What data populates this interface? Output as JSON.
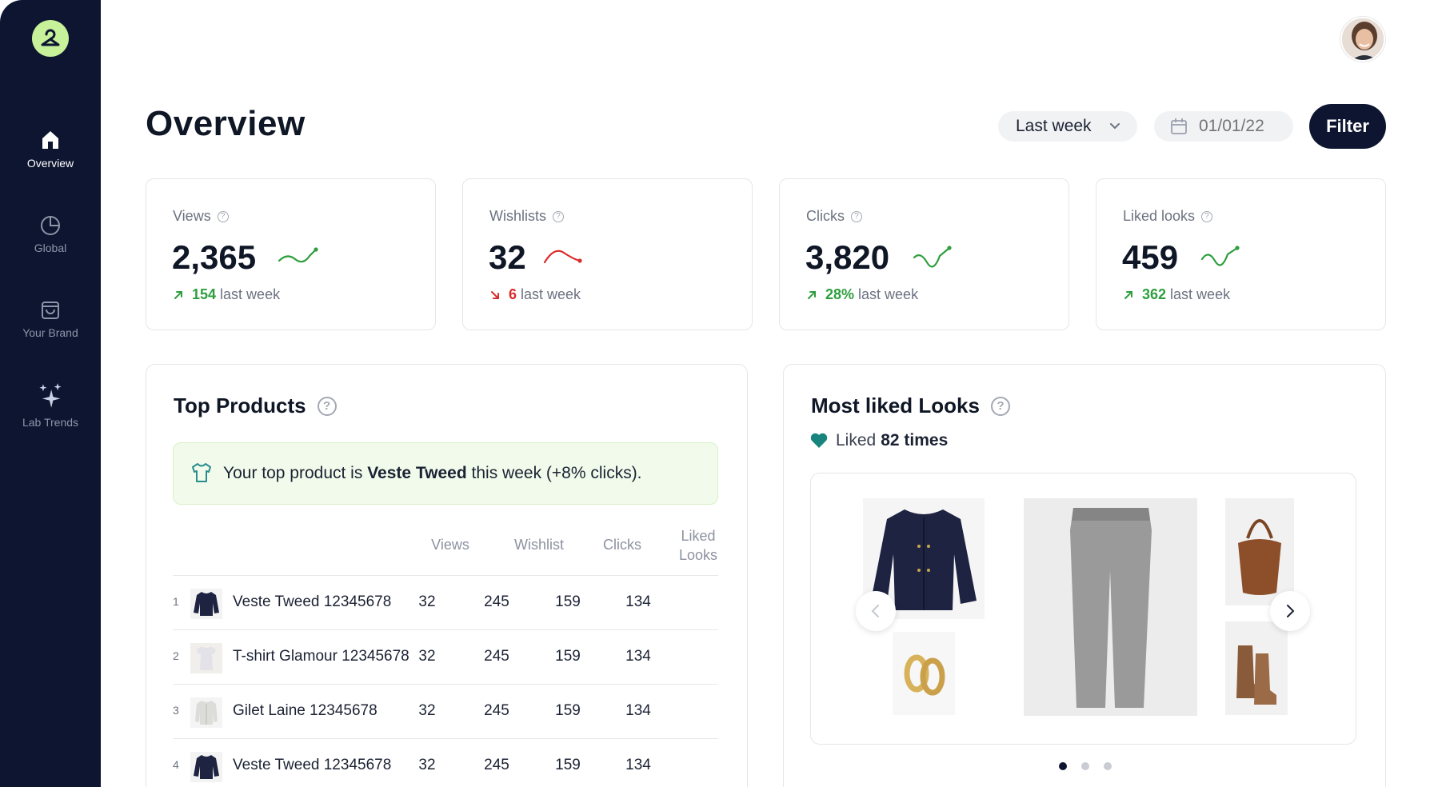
{
  "sidebar": {
    "items": [
      {
        "label": "Overview",
        "icon": "home-icon",
        "active": true
      },
      {
        "label": "Global",
        "icon": "pie-chart-icon",
        "active": false
      },
      {
        "label": "Your Brand",
        "icon": "shopping-bag-icon",
        "active": false
      },
      {
        "label": "Lab Trends",
        "icon": "sparkles-icon",
        "active": false
      }
    ]
  },
  "header": {
    "title": "Overview",
    "period": "Last week",
    "date_placeholder": "01/01/22",
    "filter_label": "Filter"
  },
  "stats": [
    {
      "label": "Views",
      "value": "2,365",
      "delta": "154",
      "delta_suffix": "last week",
      "trend": "up"
    },
    {
      "label": "Wishlists",
      "value": "32",
      "delta": "6",
      "delta_suffix": "last week",
      "trend": "down"
    },
    {
      "label": "Clicks",
      "value": "3,820",
      "delta": "28%",
      "delta_suffix": "last week",
      "trend": "up"
    },
    {
      "label": "Liked looks",
      "value": "459",
      "delta": "362",
      "delta_suffix": "last week",
      "trend": "up"
    }
  ],
  "top_products": {
    "title": "Top Products",
    "insight_prefix": "Your top product is",
    "insight_product": "Veste Tweed",
    "insight_suffix": "this week (+8% clicks).",
    "columns": [
      "Views",
      "Wishlist",
      "Clicks",
      "Liked Looks"
    ],
    "rows": [
      {
        "rank": "1",
        "name": "Veste Tweed 12345678",
        "views": "32",
        "wishlist": "245",
        "clicks": "159",
        "liked": "134"
      },
      {
        "rank": "2",
        "name": "T-shirt Glamour 12345678",
        "views": "32",
        "wishlist": "245",
        "clicks": "159",
        "liked": "134"
      },
      {
        "rank": "3",
        "name": "Gilet Laine 12345678",
        "views": "32",
        "wishlist": "245",
        "clicks": "159",
        "liked": "134"
      },
      {
        "rank": "4",
        "name": "Veste Tweed 12345678",
        "views": "32",
        "wishlist": "245",
        "clicks": "159",
        "liked": "134"
      }
    ]
  },
  "most_liked": {
    "title": "Most liked Looks",
    "liked_prefix": "Liked",
    "liked_count": "82 times",
    "dots": 3,
    "active_dot": 0
  },
  "colors": {
    "sidebar": "#0d1530",
    "accent_green": "#2e9e3e",
    "accent_red": "#d92d2d",
    "logo": "#c7f29a"
  }
}
